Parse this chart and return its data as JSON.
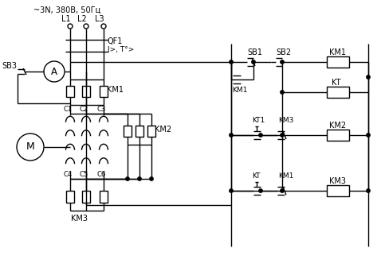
{
  "bg_color": "#ffffff",
  "power_label": "~3N, 380B, 50Гц",
  "L_labels": [
    "L1",
    "L2",
    "L3"
  ],
  "QF1_label": "QF1",
  "QF1_sub": "I>, T°>",
  "SB3_label": "SB3",
  "A_label": "A",
  "M_label": "M",
  "KM1_pwr": "KM1",
  "KM2_pwr": "KM2",
  "KM3_pwr": "KM3",
  "C_top": [
    "C1",
    "C2",
    "C3"
  ],
  "C_bot": [
    "C4",
    "C5",
    "C6"
  ],
  "SB1_label": "SB1",
  "SB2_label": "SB2",
  "ctrl_labels": [
    "KM1",
    "KT",
    "KT1",
    "KM3",
    "KM2",
    "KT",
    "KM1",
    "KM3"
  ]
}
